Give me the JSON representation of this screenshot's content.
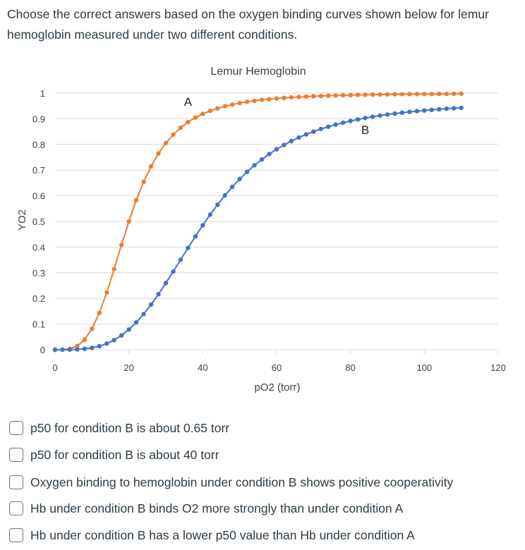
{
  "question": {
    "text": "Choose the correct answers based on the oxygen binding curves shown below for lemur hemoglobin measured under two different conditions."
  },
  "colors": {
    "condition_A": "#ED7D31",
    "condition_B": "#4472C4",
    "gridline": "#d9d9d9",
    "text": "#2d3b45"
  },
  "chart_data": {
    "type": "scatter",
    "title": "Lemur Hemoglobin",
    "xlabel": "pO2 (torr)",
    "ylabel": "YO2",
    "xlim": [
      0,
      120
    ],
    "ylim": [
      0,
      1
    ],
    "xticks": [
      0,
      20,
      40,
      60,
      80,
      100,
      120
    ],
    "yticks": [
      0,
      0.1,
      0.2,
      0.3,
      0.4,
      0.5,
      0.6,
      0.7,
      0.8,
      0.9,
      1
    ],
    "ytick_labels": [
      "0",
      "0.1",
      "0.2",
      "0.3",
      "0.4",
      "0.5",
      "0.6",
      "0.7",
      "0.8",
      "0.9",
      "1"
    ],
    "grid": true,
    "legend": "none",
    "series": [
      {
        "label": "A",
        "model": "Hill",
        "p50": 20,
        "n": 3.5,
        "ymax": 1.0,
        "x_start": 0,
        "x_end": 110,
        "x_step": 2
      },
      {
        "label": "B",
        "model": "Hill",
        "p50": 40,
        "n": 3.5,
        "ymax": 0.97,
        "x_start": 0,
        "x_end": 110,
        "x_step": 2
      }
    ],
    "annotations": [
      {
        "text": "A",
        "x": 36,
        "y": 0.95
      },
      {
        "text": "B",
        "x": 84,
        "y": 0.84
      }
    ]
  },
  "choices": [
    {
      "label": "p50 for condition B is about 0.65 torr",
      "checked": false
    },
    {
      "label": "p50 for condition B is about 40 torr",
      "checked": false
    },
    {
      "label": "Oxygen binding to hemoglobin under condition B shows positive cooperativity",
      "checked": false
    },
    {
      "label": "Hb under condition B binds O2 more strongly than under condition A",
      "checked": false
    },
    {
      "label": "Hb under condition B has a lower p50 value than Hb under condition A",
      "checked": false
    }
  ]
}
